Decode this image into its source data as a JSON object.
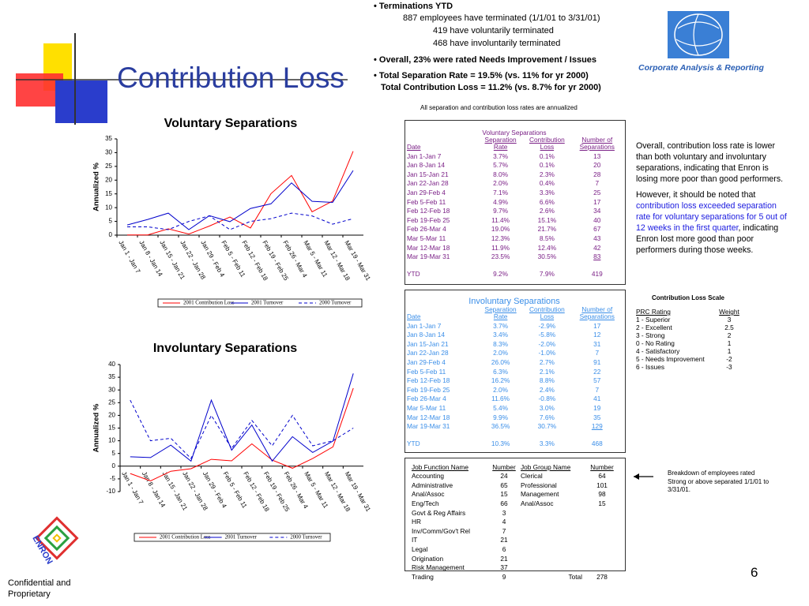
{
  "header": {
    "title": "Contribution Loss",
    "logo_text": "Corporate Analysis & Reporting",
    "enron_logo": "ENRON"
  },
  "summary": {
    "terminations": "• Terminations YTD",
    "lines": [
      "887 employees have terminated (1/1/01 to 3/31/01)",
      "419 have voluntarily terminated",
      "468 have involuntarily terminated"
    ],
    "rating": "• Overall, 23% were rated Needs Improvement / Issues",
    "separation_rate": "• Total Separation Rate = 19.5% (vs. 11% for yr 2000)",
    "contribution_loss": "Total Contribution Loss = 11.2% (vs. 8.7% for yr 2000)"
  },
  "note": "All separation and contribution loss rates are annualized",
  "voluntary_table": {
    "title": "Voluntary Separations",
    "columns": [
      "Date",
      "Separation Rate",
      "Contribution Loss",
      "Number of Separations"
    ],
    "rows": [
      [
        "Jan 1-Jan 7",
        "3.7%",
        "0.1%",
        "13"
      ],
      [
        "Jan 8-Jan 14",
        "5.7%",
        "0.1%",
        "20"
      ],
      [
        "Jan 15-Jan 21",
        "8.0%",
        "2.3%",
        "28"
      ],
      [
        "Jan 22-Jan 28",
        "2.0%",
        "0.4%",
        "7"
      ],
      [
        "Jan 29-Feb 4",
        "7.1%",
        "3.3%",
        "25"
      ],
      [
        "Feb 5-Feb 11",
        "4.9%",
        "6.6%",
        "17"
      ],
      [
        "Feb 12-Feb 18",
        "9.7%",
        "2.6%",
        "34"
      ],
      [
        "Feb 19-Feb 25",
        "11.4%",
        "15.1%",
        "40"
      ],
      [
        "Feb 26-Mar 4",
        "19.0%",
        "21.7%",
        "67"
      ],
      [
        "Mar 5-Mar 11",
        "12.3%",
        "8.5%",
        "43"
      ],
      [
        "Mar 12-Mar 18",
        "11.9%",
        "12.4%",
        "42"
      ],
      [
        "Mar 19-Mar 31",
        "23.5%",
        "30.5%",
        "83"
      ]
    ],
    "total": [
      "YTD",
      "9.2%",
      "7.9%",
      "419"
    ]
  },
  "involuntary_table": {
    "title": "Involuntary Separations",
    "columns": [
      "Date",
      "Separation Rate",
      "Contribution Loss",
      "Number of Separations"
    ],
    "rows": [
      [
        "Jan 1-Jan 7",
        "3.7%",
        "-2.9%",
        "17"
      ],
      [
        "Jan 8-Jan 14",
        "3.4%",
        "-5.8%",
        "12"
      ],
      [
        "Jan 15-Jan 21",
        "8.3%",
        "-2.0%",
        "31"
      ],
      [
        "Jan 22-Jan 28",
        "2.0%",
        "-1.0%",
        "7"
      ],
      [
        "Jan 29-Feb 4",
        "26.0%",
        "2.7%",
        "91"
      ],
      [
        "Feb 5-Feb 11",
        "6.3%",
        "2.1%",
        "22"
      ],
      [
        "Feb 12-Feb 18",
        "16.2%",
        "8.8%",
        "57"
      ],
      [
        "Feb 19-Feb 25",
        "2.0%",
        "2.4%",
        "7"
      ],
      [
        "Feb 26-Mar 4",
        "11.6%",
        "-0.8%",
        "41"
      ],
      [
        "Mar 5-Mar 11",
        "5.4%",
        "3.0%",
        "19"
      ],
      [
        "Mar 12-Mar 18",
        "9.9%",
        "7.6%",
        "35"
      ],
      [
        "Mar 19-Mar 31",
        "36.5%",
        "30.7%",
        "129"
      ]
    ],
    "total": [
      "YTD",
      "10.3%",
      "3.3%",
      "468"
    ]
  },
  "commentary": {
    "paragraph1": "Overall, contribution loss rate is lower than both voluntary and involuntary separations, indicating that Enron is losing more poor than good performers.",
    "paragraph2": [
      "However, it should be noted that ",
      "contribution loss exceeded separation rate for voluntary separations for 5 out of 12 weeks in the first quarter",
      ", indicating Enron lost more good than poor performers during those weeks."
    ]
  },
  "scale_table": {
    "title": "Contribution Loss Scale",
    "columns": [
      "PRC Rating",
      "Weight"
    ],
    "rows": [
      [
        "1 - Superior",
        "3"
      ],
      [
        "2 - Excellent",
        "2.5"
      ],
      [
        "3 - Strong",
        "2"
      ],
      [
        "0 - No Rating",
        "1"
      ],
      [
        "4 - Satisfactory",
        "1"
      ],
      [
        "5 - Needs Improvement",
        "-2"
      ],
      [
        "6 - Issues",
        "-3"
      ]
    ]
  },
  "job_table": {
    "columns": [
      "Job Function Name",
      "Number",
      "Job Group Name",
      "Number"
    ],
    "rows": [
      [
        "Accounting",
        "24",
        "Clerical",
        "64"
      ],
      [
        "Administrative",
        "65",
        "Professional",
        "101"
      ],
      [
        "Anal/Assoc",
        "15",
        "Management",
        "98"
      ],
      [
        "Eng/Tech",
        "66",
        "Anal/Assoc",
        "15"
      ],
      [
        "Govt & Reg Affairs",
        "3"
      ],
      [
        "HR",
        "4"
      ],
      [
        "Inv/Comm/Gov't Rel",
        "7"
      ],
      [
        "IT",
        "21"
      ],
      [
        "Legal",
        "6"
      ],
      [
        "Origination",
        "21"
      ],
      [
        "Risk Management",
        "37"
      ],
      [
        "Trading",
        "9",
        "Total",
        "278"
      ]
    ]
  },
  "breakdown_note": "Breakdown of employees rated Strong or above separated 1/1/01 to 3/31/01.",
  "footer": "Confidential and Proprietary",
  "page_number": "6",
  "chart_data": [
    {
      "type": "line",
      "title": "Voluntary Separations",
      "y_label": "Annualized %",
      "categories": [
        "Jan 1 - Jan 7",
        "Jan 8 - Jan 14",
        "Jan 15 - Jan 21",
        "Jan 22 - Jan 28",
        "Jan 29 - Feb 4",
        "Feb 5 - Feb 11",
        "Feb 12 - Feb 18",
        "Feb 19 - Feb 25",
        "Feb 26 - Mar 4",
        "Mar 5 - Mar 11",
        "Mar 12 - Mar 18",
        "Mar 19 - Mar 31"
      ],
      "series": [
        {
          "name": "2001 Contribution Loss",
          "color": "#ff0000",
          "values": [
            0.1,
            0.1,
            2.3,
            0.4,
            3.3,
            6.6,
            2.6,
            15.1,
            21.7,
            8.5,
            12.4,
            30.5
          ]
        },
        {
          "name": "2001 Turnover",
          "color": "#0000cc",
          "values": [
            3.7,
            5.7,
            8.0,
            2.0,
            7.1,
            4.9,
            9.7,
            11.4,
            19.0,
            12.3,
            11.9,
            23.5
          ]
        },
        {
          "name": "2000 Turnover",
          "color": "#0000cc",
          "dashed": true,
          "values": [
            3,
            3,
            2,
            5,
            7,
            2,
            5,
            6,
            8,
            7,
            4,
            6
          ]
        }
      ],
      "ylim": [
        0,
        35
      ],
      "yticks": [
        0,
        5,
        10,
        15,
        20,
        25,
        30,
        35
      ]
    },
    {
      "type": "line",
      "title": "Involuntary Separations",
      "y_label": "Annualized %",
      "categories": [
        "Jan 1 - Jan 7",
        "Jan 8 - Jan 14",
        "Jan 15 - Jan 21",
        "Jan 22 - Jan 28",
        "Jan 29 - Feb 4",
        "Feb 5 - Feb 11",
        "Feb 12 - Feb 18",
        "Feb 19 - Feb 25",
        "Feb 26 - Mar 4",
        "Mar 5 - Mar 11",
        "Mar 12 - Mar 18",
        "Mar 19 - Mar 31"
      ],
      "series": [
        {
          "name": "2001 Contribution Loss",
          "color": "#ff0000",
          "values": [
            -2.9,
            -5.8,
            -2.0,
            -1.0,
            2.7,
            2.1,
            8.8,
            2.4,
            -0.8,
            3.0,
            7.6,
            30.7
          ]
        },
        {
          "name": "2001 Turnover",
          "color": "#0000cc",
          "values": [
            3.7,
            3.4,
            8.3,
            2.0,
            26.0,
            6.3,
            16.2,
            2.0,
            11.6,
            5.4,
            9.9,
            36.5
          ]
        },
        {
          "name": "2000 Turnover",
          "color": "#0000cc",
          "dashed": true,
          "values": [
            26,
            10,
            11,
            3,
            20,
            7,
            18,
            8,
            20,
            8,
            10,
            15
          ]
        }
      ],
      "ylim": [
        -10,
        40
      ],
      "yticks": [
        -10,
        -5,
        0,
        5,
        10,
        15,
        20,
        25,
        30,
        35,
        40
      ]
    }
  ]
}
